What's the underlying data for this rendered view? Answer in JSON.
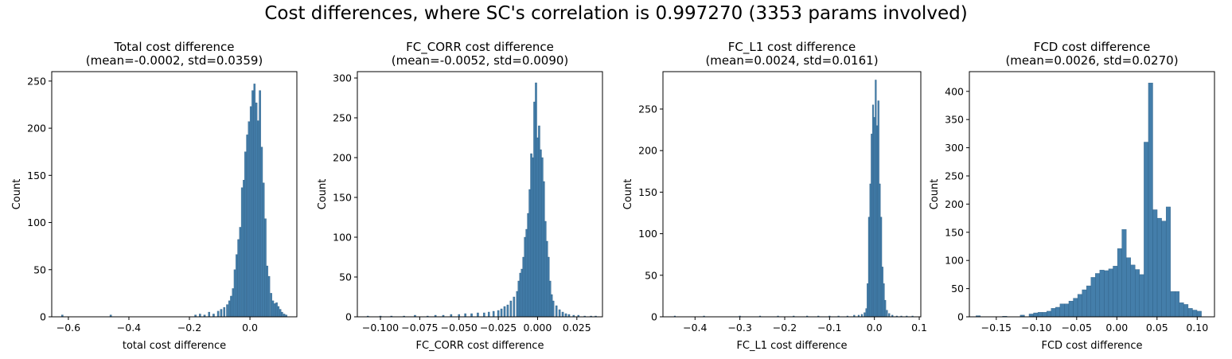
{
  "suptitle": "Cost differences, where SC's correlation is 0.997270 (3353 params involved)",
  "bar_color": "#3a77a5",
  "chart_data": [
    {
      "type": "bar",
      "title_line1": "Total cost difference",
      "title_line2": "(mean=-0.0002, std=0.0359)",
      "xlabel": "total cost difference",
      "ylabel": "Count",
      "xlim": [
        -0.655,
        0.155
      ],
      "ylim": [
        0,
        260
      ],
      "xticks": [
        -0.6,
        -0.4,
        -0.2,
        0.0,
        0.2
      ],
      "xtick_labels": [
        "−0.6",
        "−0.4",
        "−0.2",
        "0.0",
        "0.2"
      ],
      "yticks": [
        0,
        50,
        100,
        150,
        200,
        250
      ],
      "ytick_labels": [
        "0",
        "50",
        "100",
        "150",
        "200",
        "250"
      ],
      "bin_width": 0.0058,
      "bins": [
        [
          -0.62,
          2
        ],
        [
          -0.46,
          2
        ],
        [
          -0.18,
          2
        ],
        [
          -0.165,
          3
        ],
        [
          -0.15,
          2
        ],
        [
          -0.135,
          5
        ],
        [
          -0.12,
          3
        ],
        [
          -0.105,
          6
        ],
        [
          -0.095,
          8
        ],
        [
          -0.085,
          10
        ],
        [
          -0.075,
          13
        ],
        [
          -0.068,
          17
        ],
        [
          -0.062,
          22
        ],
        [
          -0.056,
          30
        ],
        [
          -0.05,
          50
        ],
        [
          -0.044,
          66
        ],
        [
          -0.038,
          82
        ],
        [
          -0.032,
          95
        ],
        [
          -0.026,
          137
        ],
        [
          -0.02,
          145
        ],
        [
          -0.015,
          175
        ],
        [
          -0.009,
          193
        ],
        [
          -0.003,
          207
        ],
        [
          0.003,
          223
        ],
        [
          0.009,
          240
        ],
        [
          0.015,
          247
        ],
        [
          0.021,
          227
        ],
        [
          0.027,
          208
        ],
        [
          0.033,
          240
        ],
        [
          0.039,
          180
        ],
        [
          0.045,
          142
        ],
        [
          0.051,
          104
        ],
        [
          0.057,
          54
        ],
        [
          0.063,
          43
        ],
        [
          0.07,
          25
        ],
        [
          0.076,
          17
        ],
        [
          0.082,
          14
        ],
        [
          0.088,
          15
        ],
        [
          0.094,
          11
        ],
        [
          0.1,
          8
        ],
        [
          0.106,
          5
        ],
        [
          0.113,
          3
        ],
        [
          0.12,
          2
        ]
      ]
    },
    {
      "type": "bar",
      "title_line1": "FC_CORR cost difference",
      "title_line2": "(mean=-0.0052, std=0.0090)",
      "xlabel": "FC_CORR cost difference",
      "ylabel": "Count",
      "xlim": [
        -0.1147,
        0.0413
      ],
      "ylim": [
        0,
        308
      ],
      "xticks": [
        -0.1,
        -0.075,
        -0.05,
        -0.025,
        0.0,
        0.025
      ],
      "xtick_labels": [
        "−0.100",
        "−0.075",
        "−0.050",
        "−0.025",
        "0.000",
        "0.025"
      ],
      "yticks": [
        0,
        50,
        100,
        150,
        200,
        250,
        300
      ],
      "ytick_labels": [
        "0",
        "50",
        "100",
        "150",
        "200",
        "250",
        "300"
      ],
      "bin_width": 0.0011,
      "bins": [
        [
          -0.108,
          1
        ],
        [
          -0.1,
          1
        ],
        [
          -0.093,
          1
        ],
        [
          -0.085,
          1
        ],
        [
          -0.078,
          2
        ],
        [
          -0.07,
          1
        ],
        [
          -0.065,
          2
        ],
        [
          -0.06,
          2
        ],
        [
          -0.055,
          3
        ],
        [
          -0.05,
          3
        ],
        [
          -0.046,
          4
        ],
        [
          -0.042,
          4
        ],
        [
          -0.038,
          5
        ],
        [
          -0.034,
          5
        ],
        [
          -0.031,
          6
        ],
        [
          -0.028,
          7
        ],
        [
          -0.025,
          8
        ],
        [
          -0.023,
          10
        ],
        [
          -0.021,
          13
        ],
        [
          -0.019,
          15
        ],
        [
          -0.017,
          20
        ],
        [
          -0.015,
          25
        ],
        [
          -0.013,
          32
        ],
        [
          -0.012,
          45
        ],
        [
          -0.011,
          55
        ],
        [
          -0.01,
          60
        ],
        [
          -0.009,
          75
        ],
        [
          -0.008,
          100
        ],
        [
          -0.007,
          110
        ],
        [
          -0.006,
          130
        ],
        [
          -0.005,
          160
        ],
        [
          -0.004,
          205
        ],
        [
          -0.003,
          200
        ],
        [
          -0.002,
          270
        ],
        [
          -0.001,
          294
        ],
        [
          0.0,
          225
        ],
        [
          0.001,
          240
        ],
        [
          0.002,
          210
        ],
        [
          0.003,
          200
        ],
        [
          0.004,
          170
        ],
        [
          0.005,
          120
        ],
        [
          0.006,
          95
        ],
        [
          0.007,
          75
        ],
        [
          0.008,
          45
        ],
        [
          0.009,
          28
        ],
        [
          0.01,
          20
        ],
        [
          0.012,
          14
        ],
        [
          0.014,
          9
        ],
        [
          0.016,
          6
        ],
        [
          0.018,
          4
        ],
        [
          0.02,
          3
        ],
        [
          0.023,
          2
        ],
        [
          0.026,
          2
        ],
        [
          0.03,
          1
        ],
        [
          0.034,
          1
        ],
        [
          0.037,
          1
        ]
      ]
    },
    {
      "type": "bar",
      "title_line1": "FC_L1 cost difference",
      "title_line2": "(mean=0.0024, std=0.0161)",
      "xlabel": "FC_L1 cost difference",
      "ylabel": "Count",
      "xlim": [
        -0.4715,
        0.1035
      ],
      "ylim": [
        0,
        295
      ],
      "xticks": [
        -0.4,
        -0.3,
        -0.2,
        -0.1,
        0.0,
        0.1
      ],
      "xtick_labels": [
        "−0.4",
        "−0.3",
        "−0.2",
        "−0.1",
        "0.0",
        "0.1"
      ],
      "yticks": [
        0,
        50,
        100,
        150,
        200,
        250
      ],
      "ytick_labels": [
        "0",
        "50",
        "100",
        "150",
        "200",
        "250"
      ],
      "bin_width": 0.0032,
      "bins": [
        [
          -0.445,
          1
        ],
        [
          -0.38,
          1
        ],
        [
          -0.3,
          1
        ],
        [
          -0.255,
          1
        ],
        [
          -0.215,
          1
        ],
        [
          -0.18,
          1
        ],
        [
          -0.15,
          1
        ],
        [
          -0.125,
          1
        ],
        [
          -0.1,
          1
        ],
        [
          -0.08,
          1
        ],
        [
          -0.06,
          1
        ],
        [
          -0.045,
          2
        ],
        [
          -0.035,
          2
        ],
        [
          -0.028,
          3
        ],
        [
          -0.022,
          5
        ],
        [
          -0.018,
          10
        ],
        [
          -0.015,
          40
        ],
        [
          -0.012,
          120
        ],
        [
          -0.009,
          160
        ],
        [
          -0.006,
          220
        ],
        [
          -0.003,
          255
        ],
        [
          0.0,
          240
        ],
        [
          0.003,
          285
        ],
        [
          0.006,
          230
        ],
        [
          0.009,
          260
        ],
        [
          0.012,
          160
        ],
        [
          0.015,
          120
        ],
        [
          0.018,
          60
        ],
        [
          0.021,
          40
        ],
        [
          0.024,
          20
        ],
        [
          0.028,
          8
        ],
        [
          0.033,
          4
        ],
        [
          0.04,
          2
        ],
        [
          0.05,
          1
        ],
        [
          0.06,
          1
        ],
        [
          0.072,
          1
        ],
        [
          0.085,
          1
        ]
      ]
    },
    {
      "type": "bar",
      "title_line1": "FCD cost difference",
      "title_line2": "(mean=0.0026, std=0.0270)",
      "xlabel": "FCD cost difference",
      "ylabel": "Count",
      "xlim": [
        -0.1835,
        0.1215
      ],
      "ylim": [
        0,
        435
      ],
      "xticks": [
        -0.15,
        -0.1,
        -0.05,
        0.0,
        0.05,
        0.1
      ],
      "xtick_labels": [
        "−0.15",
        "−0.10",
        "−0.05",
        "0.00",
        "0.05",
        "0.10"
      ],
      "yticks": [
        0,
        50,
        100,
        150,
        200,
        250,
        300,
        350,
        400
      ],
      "ytick_labels": [
        "0",
        "50",
        "100",
        "150",
        "200",
        "250",
        "300",
        "350",
        "400"
      ],
      "bin_width": 0.0055,
      "bins": [
        [
          -0.1725,
          2
        ],
        [
          -0.1395,
          1
        ],
        [
          -0.1175,
          3
        ],
        [
          -0.1065,
          5
        ],
        [
          -0.101,
          7
        ],
        [
          -0.0955,
          8
        ],
        [
          -0.09,
          8
        ],
        [
          -0.0845,
          10
        ],
        [
          -0.079,
          15
        ],
        [
          -0.0735,
          17
        ],
        [
          -0.068,
          23
        ],
        [
          -0.0625,
          23
        ],
        [
          -0.057,
          28
        ],
        [
          -0.0515,
          33
        ],
        [
          -0.046,
          40
        ],
        [
          -0.0405,
          48
        ],
        [
          -0.035,
          55
        ],
        [
          -0.0295,
          70
        ],
        [
          -0.024,
          77
        ],
        [
          -0.0185,
          83
        ],
        [
          -0.013,
          82
        ],
        [
          -0.0075,
          85
        ],
        [
          -0.002,
          90
        ],
        [
          0.0035,
          121
        ],
        [
          0.009,
          155
        ],
        [
          0.0145,
          105
        ],
        [
          0.02,
          92
        ],
        [
          0.0255,
          84
        ],
        [
          0.031,
          75
        ],
        [
          0.0365,
          310
        ],
        [
          0.042,
          415
        ],
        [
          0.0475,
          190
        ],
        [
          0.053,
          175
        ],
        [
          0.0585,
          170
        ],
        [
          0.064,
          195
        ],
        [
          0.0695,
          45
        ],
        [
          0.075,
          45
        ],
        [
          0.0805,
          25
        ],
        [
          0.086,
          22
        ],
        [
          0.0915,
          15
        ],
        [
          0.097,
          12
        ],
        [
          0.1025,
          10
        ]
      ]
    }
  ]
}
